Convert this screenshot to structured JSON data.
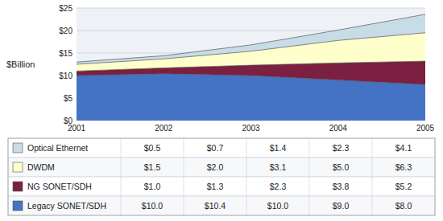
{
  "chart_data": {
    "type": "area",
    "stacked": true,
    "grid": true,
    "ylabel": "$Billion",
    "x": [
      2001,
      2002,
      2003,
      2004,
      2005
    ],
    "xlim": [
      2001,
      2005
    ],
    "xticks": [
      2001,
      2002,
      2003,
      2004,
      2005
    ],
    "ylim": [
      0,
      25
    ],
    "yticks": [
      {
        "value": 0,
        "label": "$0"
      },
      {
        "value": 5,
        "label": "$5"
      },
      {
        "value": 10,
        "label": "$10"
      },
      {
        "value": 15,
        "label": "$15"
      },
      {
        "value": 20,
        "label": "$20"
      },
      {
        "value": 25,
        "label": "$25"
      }
    ],
    "series": [
      {
        "name": "Legacy SONET/SDH",
        "color": "#4472C4",
        "values": [
          10.0,
          10.4,
          10.0,
          9.0,
          8.0
        ],
        "value_labels": [
          "$10.0",
          "$10.4",
          "$10.0",
          "$9.0",
          "$8.0"
        ]
      },
      {
        "name": "NG SONET/SDH",
        "color": "#7B2040",
        "values": [
          1.0,
          1.3,
          2.3,
          3.8,
          5.2
        ],
        "value_labels": [
          "$1.0",
          "$1.3",
          "$2.3",
          "$3.8",
          "$5.2"
        ]
      },
      {
        "name": "DWDM",
        "color": "#FFFFCC",
        "values": [
          1.5,
          2.0,
          3.1,
          5.0,
          6.3
        ],
        "value_labels": [
          "$1.5",
          "$2.0",
          "$3.1",
          "$5.0",
          "$6.3"
        ]
      },
      {
        "name": "Optical Ethernet",
        "color": "#C8DCE8",
        "values": [
          0.5,
          0.7,
          1.4,
          2.3,
          4.1
        ],
        "value_labels": [
          "$0.5",
          "$0.7",
          "$1.4",
          "$2.3",
          "$4.1"
        ]
      }
    ]
  }
}
